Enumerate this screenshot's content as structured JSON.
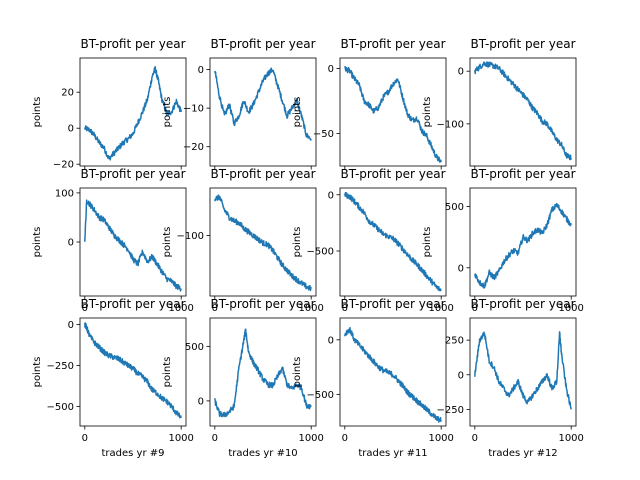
{
  "line_color": "#1f77b4",
  "chart_data": [
    {
      "type": "line",
      "title": "BT-profit per year",
      "ylabel": "points",
      "xlabel": "",
      "xlim": [
        -50,
        1050
      ],
      "ylim": [
        -21,
        39
      ],
      "xticks": [
        0,
        1000
      ],
      "yticks": [
        -20,
        0,
        20
      ],
      "x_tick_labels_shown": [],
      "anchors": [
        [
          0,
          0
        ],
        [
          50,
          -1
        ],
        [
          100,
          -4
        ],
        [
          150,
          -8
        ],
        [
          200,
          -11
        ],
        [
          250,
          -17
        ],
        [
          300,
          -14
        ],
        [
          350,
          -11
        ],
        [
          400,
          -8
        ],
        [
          450,
          -6
        ],
        [
          500,
          -3
        ],
        [
          550,
          3
        ],
        [
          600,
          9
        ],
        [
          650,
          16
        ],
        [
          700,
          29
        ],
        [
          730,
          33
        ],
        [
          760,
          27
        ],
        [
          800,
          16
        ],
        [
          850,
          8
        ],
        [
          900,
          9
        ],
        [
          950,
          15
        ],
        [
          1000,
          9
        ]
      ]
    },
    {
      "type": "line",
      "title": "BT-profit per year",
      "ylabel": "points",
      "xlabel": "",
      "xlim": [
        -50,
        1050
      ],
      "ylim": [
        -25,
        3
      ],
      "xticks": [
        0,
        1000
      ],
      "yticks": [
        -20,
        -10,
        0
      ],
      "x_tick_labels_shown": [],
      "anchors": [
        [
          0,
          0
        ],
        [
          40,
          -6
        ],
        [
          100,
          -12
        ],
        [
          150,
          -9
        ],
        [
          200,
          -14
        ],
        [
          250,
          -12
        ],
        [
          300,
          -8
        ],
        [
          350,
          -11
        ],
        [
          400,
          -9
        ],
        [
          450,
          -6
        ],
        [
          500,
          -3
        ],
        [
          550,
          -1
        ],
        [
          600,
          0
        ],
        [
          650,
          -4
        ],
        [
          700,
          -8
        ],
        [
          750,
          -12
        ],
        [
          800,
          -10
        ],
        [
          850,
          -8
        ],
        [
          900,
          -12
        ],
        [
          950,
          -17
        ],
        [
          1000,
          -18
        ]
      ]
    },
    {
      "type": "line",
      "title": "BT-profit per year",
      "ylabel": "points",
      "xlabel": "",
      "xlim": [
        -50,
        1050
      ],
      "ylim": [
        -75,
        8
      ],
      "xticks": [
        0,
        1000
      ],
      "yticks": [
        -50,
        0
      ],
      "x_tick_labels_shown": [],
      "anchors": [
        [
          0,
          0
        ],
        [
          50,
          -2
        ],
        [
          100,
          -8
        ],
        [
          150,
          -13
        ],
        [
          200,
          -25
        ],
        [
          250,
          -28
        ],
        [
          300,
          -33
        ],
        [
          350,
          -30
        ],
        [
          400,
          -22
        ],
        [
          450,
          -18
        ],
        [
          500,
          -12
        ],
        [
          550,
          -8
        ],
        [
          600,
          -22
        ],
        [
          650,
          -35
        ],
        [
          700,
          -40
        ],
        [
          750,
          -38
        ],
        [
          800,
          -48
        ],
        [
          850,
          -52
        ],
        [
          900,
          -60
        ],
        [
          950,
          -68
        ],
        [
          1000,
          -72
        ]
      ]
    },
    {
      "type": "line",
      "title": "BT-profit per year",
      "ylabel": "points",
      "xlabel": "",
      "xlim": [
        -50,
        1050
      ],
      "ylim": [
        -180,
        25
      ],
      "xticks": [
        0,
        1000
      ],
      "yticks": [
        -100,
        0
      ],
      "x_tick_labels_shown": [],
      "anchors": [
        [
          0,
          0
        ],
        [
          50,
          8
        ],
        [
          100,
          15
        ],
        [
          150,
          12
        ],
        [
          200,
          10
        ],
        [
          250,
          5
        ],
        [
          300,
          -5
        ],
        [
          350,
          -15
        ],
        [
          400,
          -25
        ],
        [
          450,
          -35
        ],
        [
          500,
          -45
        ],
        [
          550,
          -55
        ],
        [
          600,
          -70
        ],
        [
          650,
          -80
        ],
        [
          700,
          -95
        ],
        [
          750,
          -100
        ],
        [
          800,
          -115
        ],
        [
          850,
          -130
        ],
        [
          900,
          -140
        ],
        [
          950,
          -160
        ],
        [
          1000,
          -165
        ]
      ]
    },
    {
      "type": "line",
      "title": "BT-profit per year",
      "ylabel": "points",
      "xlabel": "",
      "xlim": [
        -50,
        1050
      ],
      "ylim": [
        -110,
        110
      ],
      "xticks": [
        0,
        1000
      ],
      "yticks": [
        0,
        100
      ],
      "x_tick_labels_shown": [
        "0",
        "1000"
      ],
      "anchors": [
        [
          0,
          5
        ],
        [
          20,
          85
        ],
        [
          60,
          75
        ],
        [
          100,
          65
        ],
        [
          150,
          50
        ],
        [
          200,
          45
        ],
        [
          250,
          30
        ],
        [
          300,
          15
        ],
        [
          350,
          5
        ],
        [
          400,
          -5
        ],
        [
          450,
          -15
        ],
        [
          500,
          -35
        ],
        [
          550,
          -45
        ],
        [
          600,
          -20
        ],
        [
          650,
          -40
        ],
        [
          700,
          -30
        ],
        [
          750,
          -45
        ],
        [
          800,
          -60
        ],
        [
          850,
          -75
        ],
        [
          900,
          -80
        ],
        [
          950,
          -90
        ],
        [
          1000,
          -95
        ]
      ]
    },
    {
      "type": "line",
      "title": "BT-profit per year",
      "ylabel": "points",
      "xlabel": "",
      "xlim": [
        -50,
        1050
      ],
      "ylim": [
        -265,
        30
      ],
      "xticks": [
        0,
        1000
      ],
      "yticks": [
        -100
      ],
      "x_tick_labels_shown": [
        "0",
        "1000"
      ],
      "anchors": [
        [
          0,
          0
        ],
        [
          50,
          5
        ],
        [
          100,
          -30
        ],
        [
          150,
          -50
        ],
        [
          200,
          -60
        ],
        [
          250,
          -65
        ],
        [
          300,
          -80
        ],
        [
          350,
          -90
        ],
        [
          400,
          -100
        ],
        [
          450,
          -110
        ],
        [
          500,
          -120
        ],
        [
          550,
          -125
        ],
        [
          600,
          -140
        ],
        [
          650,
          -160
        ],
        [
          700,
          -180
        ],
        [
          750,
          -195
        ],
        [
          800,
          -210
        ],
        [
          850,
          -220
        ],
        [
          900,
          -230
        ],
        [
          950,
          -240
        ],
        [
          1000,
          -245
        ]
      ]
    },
    {
      "type": "line",
      "title": "BT-profit per year",
      "ylabel": "points",
      "xlabel": "",
      "xlim": [
        -50,
        1050
      ],
      "ylim": [
        -900,
        60
      ],
      "xticks": [
        0,
        1000
      ],
      "yticks": [
        -500,
        0
      ],
      "x_tick_labels_shown": [
        "0",
        "1000"
      ],
      "anchors": [
        [
          0,
          0
        ],
        [
          50,
          -15
        ],
        [
          100,
          -60
        ],
        [
          150,
          -110
        ],
        [
          200,
          -160
        ],
        [
          250,
          -230
        ],
        [
          300,
          -270
        ],
        [
          350,
          -310
        ],
        [
          400,
          -350
        ],
        [
          450,
          -370
        ],
        [
          500,
          -390
        ],
        [
          550,
          -430
        ],
        [
          600,
          -480
        ],
        [
          650,
          -530
        ],
        [
          700,
          -580
        ],
        [
          750,
          -620
        ],
        [
          800,
          -670
        ],
        [
          850,
          -720
        ],
        [
          900,
          -770
        ],
        [
          950,
          -820
        ],
        [
          1000,
          -850
        ]
      ]
    },
    {
      "type": "line",
      "title": "BT-profit per year",
      "ylabel": "points",
      "xlabel": "",
      "xlim": [
        -50,
        1050
      ],
      "ylim": [
        -230,
        650
      ],
      "xticks": [
        0,
        1000
      ],
      "yticks": [
        0,
        500
      ],
      "x_tick_labels_shown": [
        "0",
        "1000"
      ],
      "anchors": [
        [
          0,
          -50
        ],
        [
          50,
          -120
        ],
        [
          100,
          -150
        ],
        [
          150,
          -40
        ],
        [
          200,
          -80
        ],
        [
          250,
          -30
        ],
        [
          300,
          50
        ],
        [
          350,
          100
        ],
        [
          400,
          140
        ],
        [
          450,
          120
        ],
        [
          500,
          250
        ],
        [
          550,
          220
        ],
        [
          600,
          280
        ],
        [
          650,
          310
        ],
        [
          700,
          280
        ],
        [
          750,
          350
        ],
        [
          800,
          470
        ],
        [
          850,
          510
        ],
        [
          900,
          460
        ],
        [
          950,
          400
        ],
        [
          1000,
          350
        ]
      ]
    },
    {
      "type": "line",
      "title": "BT-profit per year",
      "ylabel": "points",
      "xlabel": "trades yr #9",
      "xlim": [
        -50,
        1050
      ],
      "ylim": [
        -620,
        40
      ],
      "xticks": [
        0,
        1000
      ],
      "yticks": [
        -500,
        -250,
        0
      ],
      "x_tick_labels_shown": [
        "0",
        "1000"
      ],
      "anchors": [
        [
          0,
          0
        ],
        [
          20,
          -20
        ],
        [
          50,
          -70
        ],
        [
          100,
          -110
        ],
        [
          150,
          -140
        ],
        [
          200,
          -170
        ],
        [
          250,
          -190
        ],
        [
          300,
          -200
        ],
        [
          350,
          -210
        ],
        [
          400,
          -230
        ],
        [
          450,
          -250
        ],
        [
          500,
          -270
        ],
        [
          550,
          -300
        ],
        [
          600,
          -320
        ],
        [
          650,
          -350
        ],
        [
          700,
          -400
        ],
        [
          750,
          -420
        ],
        [
          800,
          -450
        ],
        [
          850,
          -470
        ],
        [
          900,
          -500
        ],
        [
          950,
          -540
        ],
        [
          1000,
          -570
        ]
      ]
    },
    {
      "type": "line",
      "title": "BT-profit per year",
      "ylabel": "points",
      "xlabel": "trades yr #10",
      "xlim": [
        -50,
        1050
      ],
      "ylim": [
        -230,
        760
      ],
      "xticks": [
        0,
        1000
      ],
      "yticks": [
        0,
        500
      ],
      "x_tick_labels_shown": [
        "0",
        "1000"
      ],
      "anchors": [
        [
          0,
          0
        ],
        [
          50,
          -120
        ],
        [
          100,
          -130
        ],
        [
          150,
          -100
        ],
        [
          200,
          -50
        ],
        [
          250,
          300
        ],
        [
          300,
          550
        ],
        [
          320,
          650
        ],
        [
          350,
          450
        ],
        [
          400,
          350
        ],
        [
          450,
          280
        ],
        [
          500,
          200
        ],
        [
          550,
          150
        ],
        [
          600,
          140
        ],
        [
          650,
          220
        ],
        [
          700,
          300
        ],
        [
          750,
          150
        ],
        [
          800,
          110
        ],
        [
          850,
          150
        ],
        [
          900,
          120
        ],
        [
          950,
          -40
        ],
        [
          1000,
          -50
        ]
      ]
    },
    {
      "type": "line",
      "title": "BT-profit per year",
      "ylabel": "points",
      "xlabel": "trades yr #11",
      "xlim": [
        -50,
        1050
      ],
      "ylim": [
        -790,
        200
      ],
      "xticks": [
        0,
        1000
      ],
      "yticks": [
        -500,
        0
      ],
      "x_tick_labels_shown": [
        "0",
        "1000"
      ],
      "anchors": [
        [
          0,
          50
        ],
        [
          50,
          100
        ],
        [
          100,
          0
        ],
        [
          150,
          -50
        ],
        [
          200,
          -100
        ],
        [
          250,
          -150
        ],
        [
          300,
          -200
        ],
        [
          350,
          -250
        ],
        [
          400,
          -280
        ],
        [
          450,
          -300
        ],
        [
          500,
          -320
        ],
        [
          550,
          -370
        ],
        [
          600,
          -420
        ],
        [
          650,
          -480
        ],
        [
          700,
          -520
        ],
        [
          750,
          -560
        ],
        [
          800,
          -600
        ],
        [
          850,
          -640
        ],
        [
          900,
          -680
        ],
        [
          950,
          -720
        ],
        [
          1000,
          -740
        ]
      ]
    },
    {
      "type": "line",
      "title": "BT-profit per year",
      "ylabel": "",
      "xlabel": "trades yr #12",
      "xlim": [
        -50,
        1050
      ],
      "ylim": [
        -370,
        410
      ],
      "xticks": [
        0,
        1000
      ],
      "yticks": [
        -250,
        0,
        250
      ],
      "x_tick_labels_shown": [
        "0",
        "1000"
      ],
      "anchors": [
        [
          0,
          0
        ],
        [
          50,
          250
        ],
        [
          100,
          300
        ],
        [
          150,
          100
        ],
        [
          200,
          50
        ],
        [
          250,
          -50
        ],
        [
          300,
          -100
        ],
        [
          350,
          -150
        ],
        [
          400,
          -100
        ],
        [
          450,
          -50
        ],
        [
          500,
          -150
        ],
        [
          550,
          -200
        ],
        [
          600,
          -150
        ],
        [
          650,
          -100
        ],
        [
          700,
          -50
        ],
        [
          750,
          0
        ],
        [
          800,
          -100
        ],
        [
          850,
          -50
        ],
        [
          880,
          300
        ],
        [
          900,
          150
        ],
        [
          950,
          -100
        ],
        [
          1000,
          -250
        ]
      ]
    }
  ]
}
